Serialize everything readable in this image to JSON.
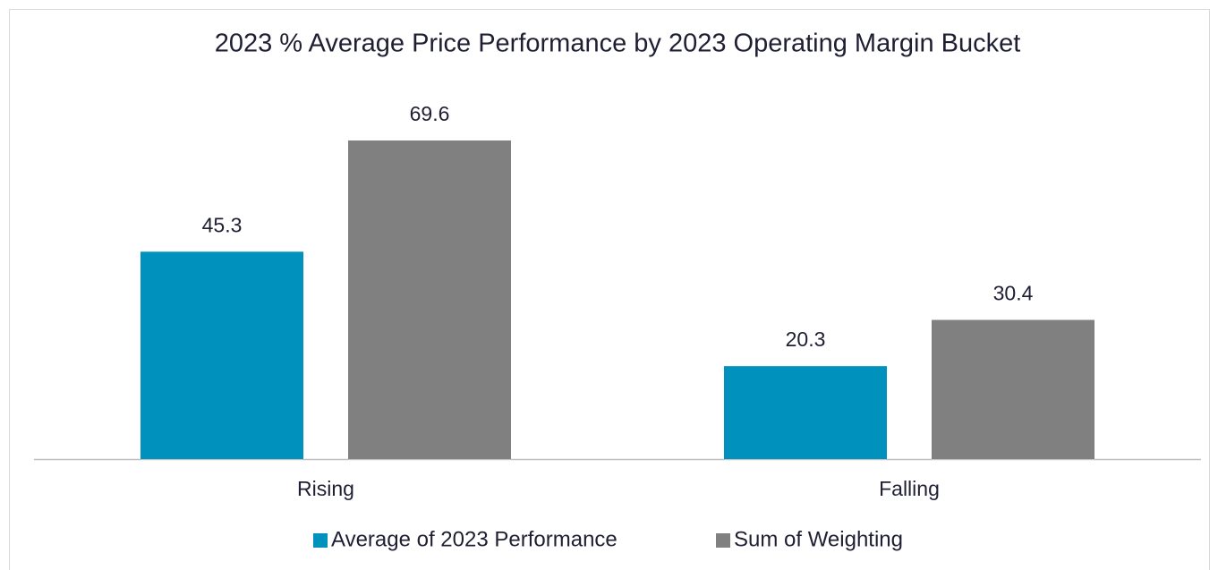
{
  "chart_data": {
    "type": "bar",
    "title": "2023 % Average Price Performance by 2023 Operating Margin Bucket",
    "categories": [
      "Rising",
      "Falling"
    ],
    "series": [
      {
        "name": "Average of 2023 Performance",
        "color": "#0091bd",
        "values": [
          45.3,
          20.3
        ]
      },
      {
        "name": "Sum of Weighting",
        "color": "#808080",
        "values": [
          69.6,
          30.4
        ]
      }
    ],
    "grid": false,
    "legend": "bottom"
  }
}
